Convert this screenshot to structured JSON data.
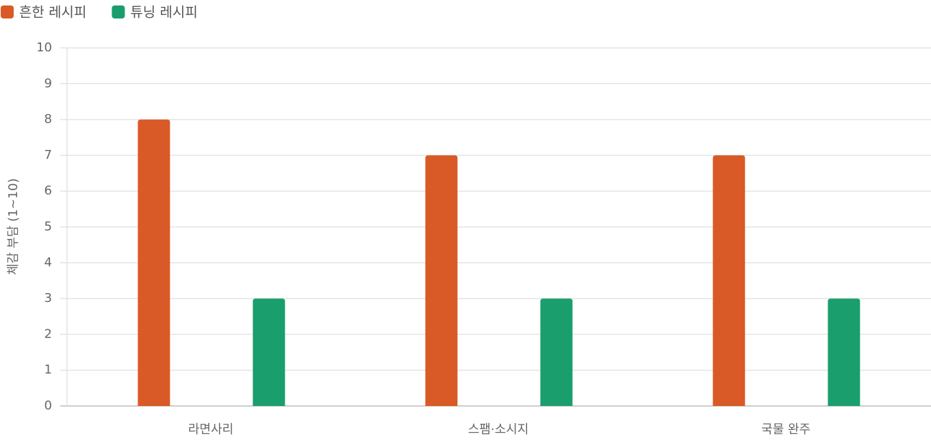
{
  "chart_data": {
    "type": "bar",
    "y_label": "체감 부담 (1~10)",
    "categories": [
      "라면사리",
      "스팸·소시지",
      "국물 완주"
    ],
    "series": [
      {
        "name": "흔한 레시피",
        "color": "#d95a26",
        "values": [
          8,
          7,
          7
        ]
      },
      {
        "name": "튜닝 레시피",
        "color": "#1a9e6e",
        "values": [
          3,
          3,
          3
        ]
      }
    ],
    "ylim": [
      0,
      10
    ],
    "yticks": [
      0,
      1,
      2,
      3,
      4,
      5,
      6,
      7,
      8,
      9,
      10
    ],
    "grid": true,
    "legend": "top-left"
  }
}
